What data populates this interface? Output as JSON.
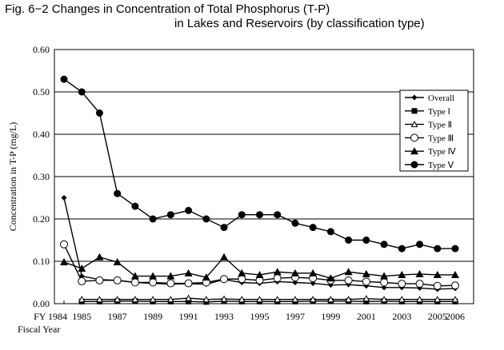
{
  "chart_data": {
    "type": "line",
    "title": "Fig. 6−2  Changes in Concentration of Total Phosphorus (T-P)",
    "subtitle": "in Lakes and Reservoirs (by classification type)",
    "ylabel": "Concentration in T-P (mg/L)",
    "xlabel": "Fiscal Year",
    "ylim": [
      0,
      0.6
    ],
    "yticks": [
      "0.00",
      "0.10",
      "0.20",
      "0.30",
      "0.40",
      "0.50",
      "0.60"
    ],
    "xticks": [
      "FY 1984",
      "1985",
      "1987",
      "1989",
      "1991",
      "1993",
      "1995",
      "1997",
      "1999",
      "2001",
      "2003",
      "2005",
      "2006"
    ],
    "x": [
      1984,
      1985,
      1986,
      1987,
      1988,
      1989,
      1990,
      1991,
      1992,
      1993,
      1994,
      1995,
      1996,
      1997,
      1998,
      1999,
      2000,
      2001,
      2002,
      2003,
      2004,
      2005,
      2006
    ],
    "grid": "horizontal",
    "legend_position": "top-right",
    "series": [
      {
        "name": "Overall",
        "marker": "diamond",
        "values": [
          0.25,
          0.065,
          0.057,
          0.055,
          0.05,
          0.048,
          0.046,
          0.047,
          0.046,
          0.057,
          0.05,
          0.048,
          0.052,
          0.05,
          0.048,
          0.044,
          0.045,
          0.042,
          0.038,
          0.038,
          0.037,
          0.034,
          0.036
        ]
      },
      {
        "name": "Type Ⅰ",
        "marker": "square",
        "values": [
          null,
          0.005,
          0.005,
          0.006,
          0.006,
          0.005,
          0.005,
          0.005,
          0.004,
          0.006,
          0.005,
          0.005,
          0.005,
          0.005,
          0.006,
          0.006,
          0.006,
          0.005,
          0.006,
          0.005,
          0.005,
          0.005,
          0.005
        ]
      },
      {
        "name": "Type Ⅱ",
        "marker": "triangle-open",
        "values": [
          null,
          0.01,
          0.01,
          0.01,
          0.01,
          0.01,
          0.01,
          0.013,
          0.01,
          0.011,
          0.01,
          0.01,
          0.01,
          0.01,
          0.01,
          0.01,
          0.01,
          0.012,
          0.01,
          0.01,
          0.01,
          0.01,
          0.01
        ]
      },
      {
        "name": "Type Ⅲ",
        "marker": "circle-open",
        "values": [
          0.14,
          0.053,
          0.055,
          0.055,
          0.05,
          0.05,
          0.048,
          0.048,
          0.05,
          0.058,
          0.058,
          0.055,
          0.06,
          0.062,
          0.06,
          0.055,
          0.055,
          0.052,
          0.05,
          0.047,
          0.047,
          0.042,
          0.043
        ]
      },
      {
        "name": "Type Ⅳ",
        "marker": "triangle",
        "values": [
          0.098,
          0.083,
          0.11,
          0.098,
          0.065,
          0.065,
          0.065,
          0.072,
          0.062,
          0.11,
          0.072,
          0.068,
          0.075,
          0.072,
          0.072,
          0.06,
          0.075,
          0.07,
          0.065,
          0.068,
          0.07,
          0.068,
          0.068
        ]
      },
      {
        "name": "Type Ⅴ",
        "marker": "circle",
        "values": [
          0.53,
          0.5,
          0.45,
          0.26,
          0.23,
          0.2,
          0.21,
          0.22,
          0.2,
          0.18,
          0.21,
          0.21,
          0.21,
          0.19,
          0.18,
          0.17,
          0.15,
          0.15,
          0.14,
          0.13,
          0.14,
          0.13,
          0.13
        ]
      }
    ]
  }
}
